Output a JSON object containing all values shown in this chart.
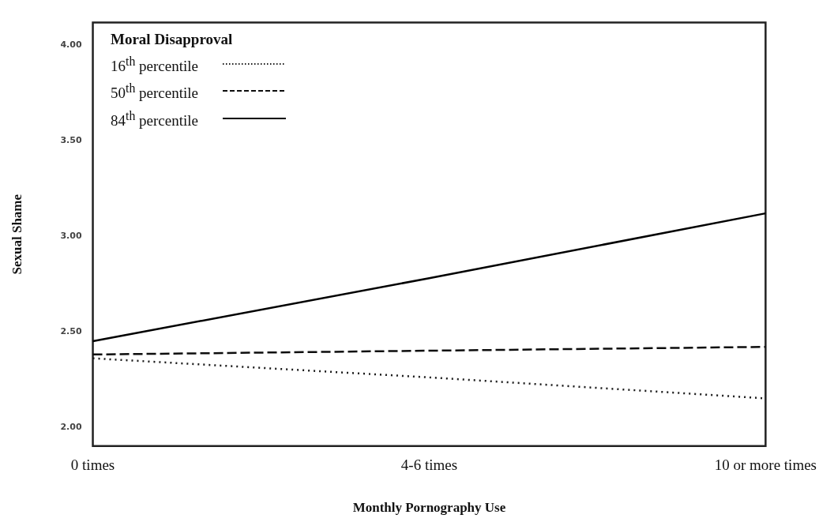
{
  "chart_data": {
    "type": "line",
    "xlabel": "Monthly Pornography Use",
    "ylabel": "Sexual Shame",
    "legend_title": "Moral Disapproval",
    "legend": "top left",
    "grid": false,
    "marker": "none",
    "categories": [
      "0 times",
      "4-6 times",
      "10 or more times"
    ],
    "ylim": [
      1.9,
      4.12
    ],
    "yticks": [
      {
        "value": 2,
        "label": "2.00"
      },
      {
        "value": 2.5,
        "label": "2.50"
      },
      {
        "value": 3,
        "label": "3.00"
      },
      {
        "value": 3.5,
        "label": "3.50"
      },
      {
        "value": 4,
        "label": "4.00"
      }
    ],
    "series": [
      {
        "name": "16$^{th}$ percentile",
        "color": "#1a1a1a",
        "line_style": "dotted",
        "values": [
          2.36,
          2.26,
          2.15
        ]
      },
      {
        "name": "50$^{th}$ percentile",
        "color": "#0d0d0d",
        "line_style": "dashed",
        "values": [
          2.38,
          2.4,
          2.42
        ]
      },
      {
        "name": "84$^{th}$ percentile",
        "color": "#000000",
        "line_style": "solid",
        "values": [
          2.45,
          2.78,
          3.12
        ]
      }
    ]
  }
}
